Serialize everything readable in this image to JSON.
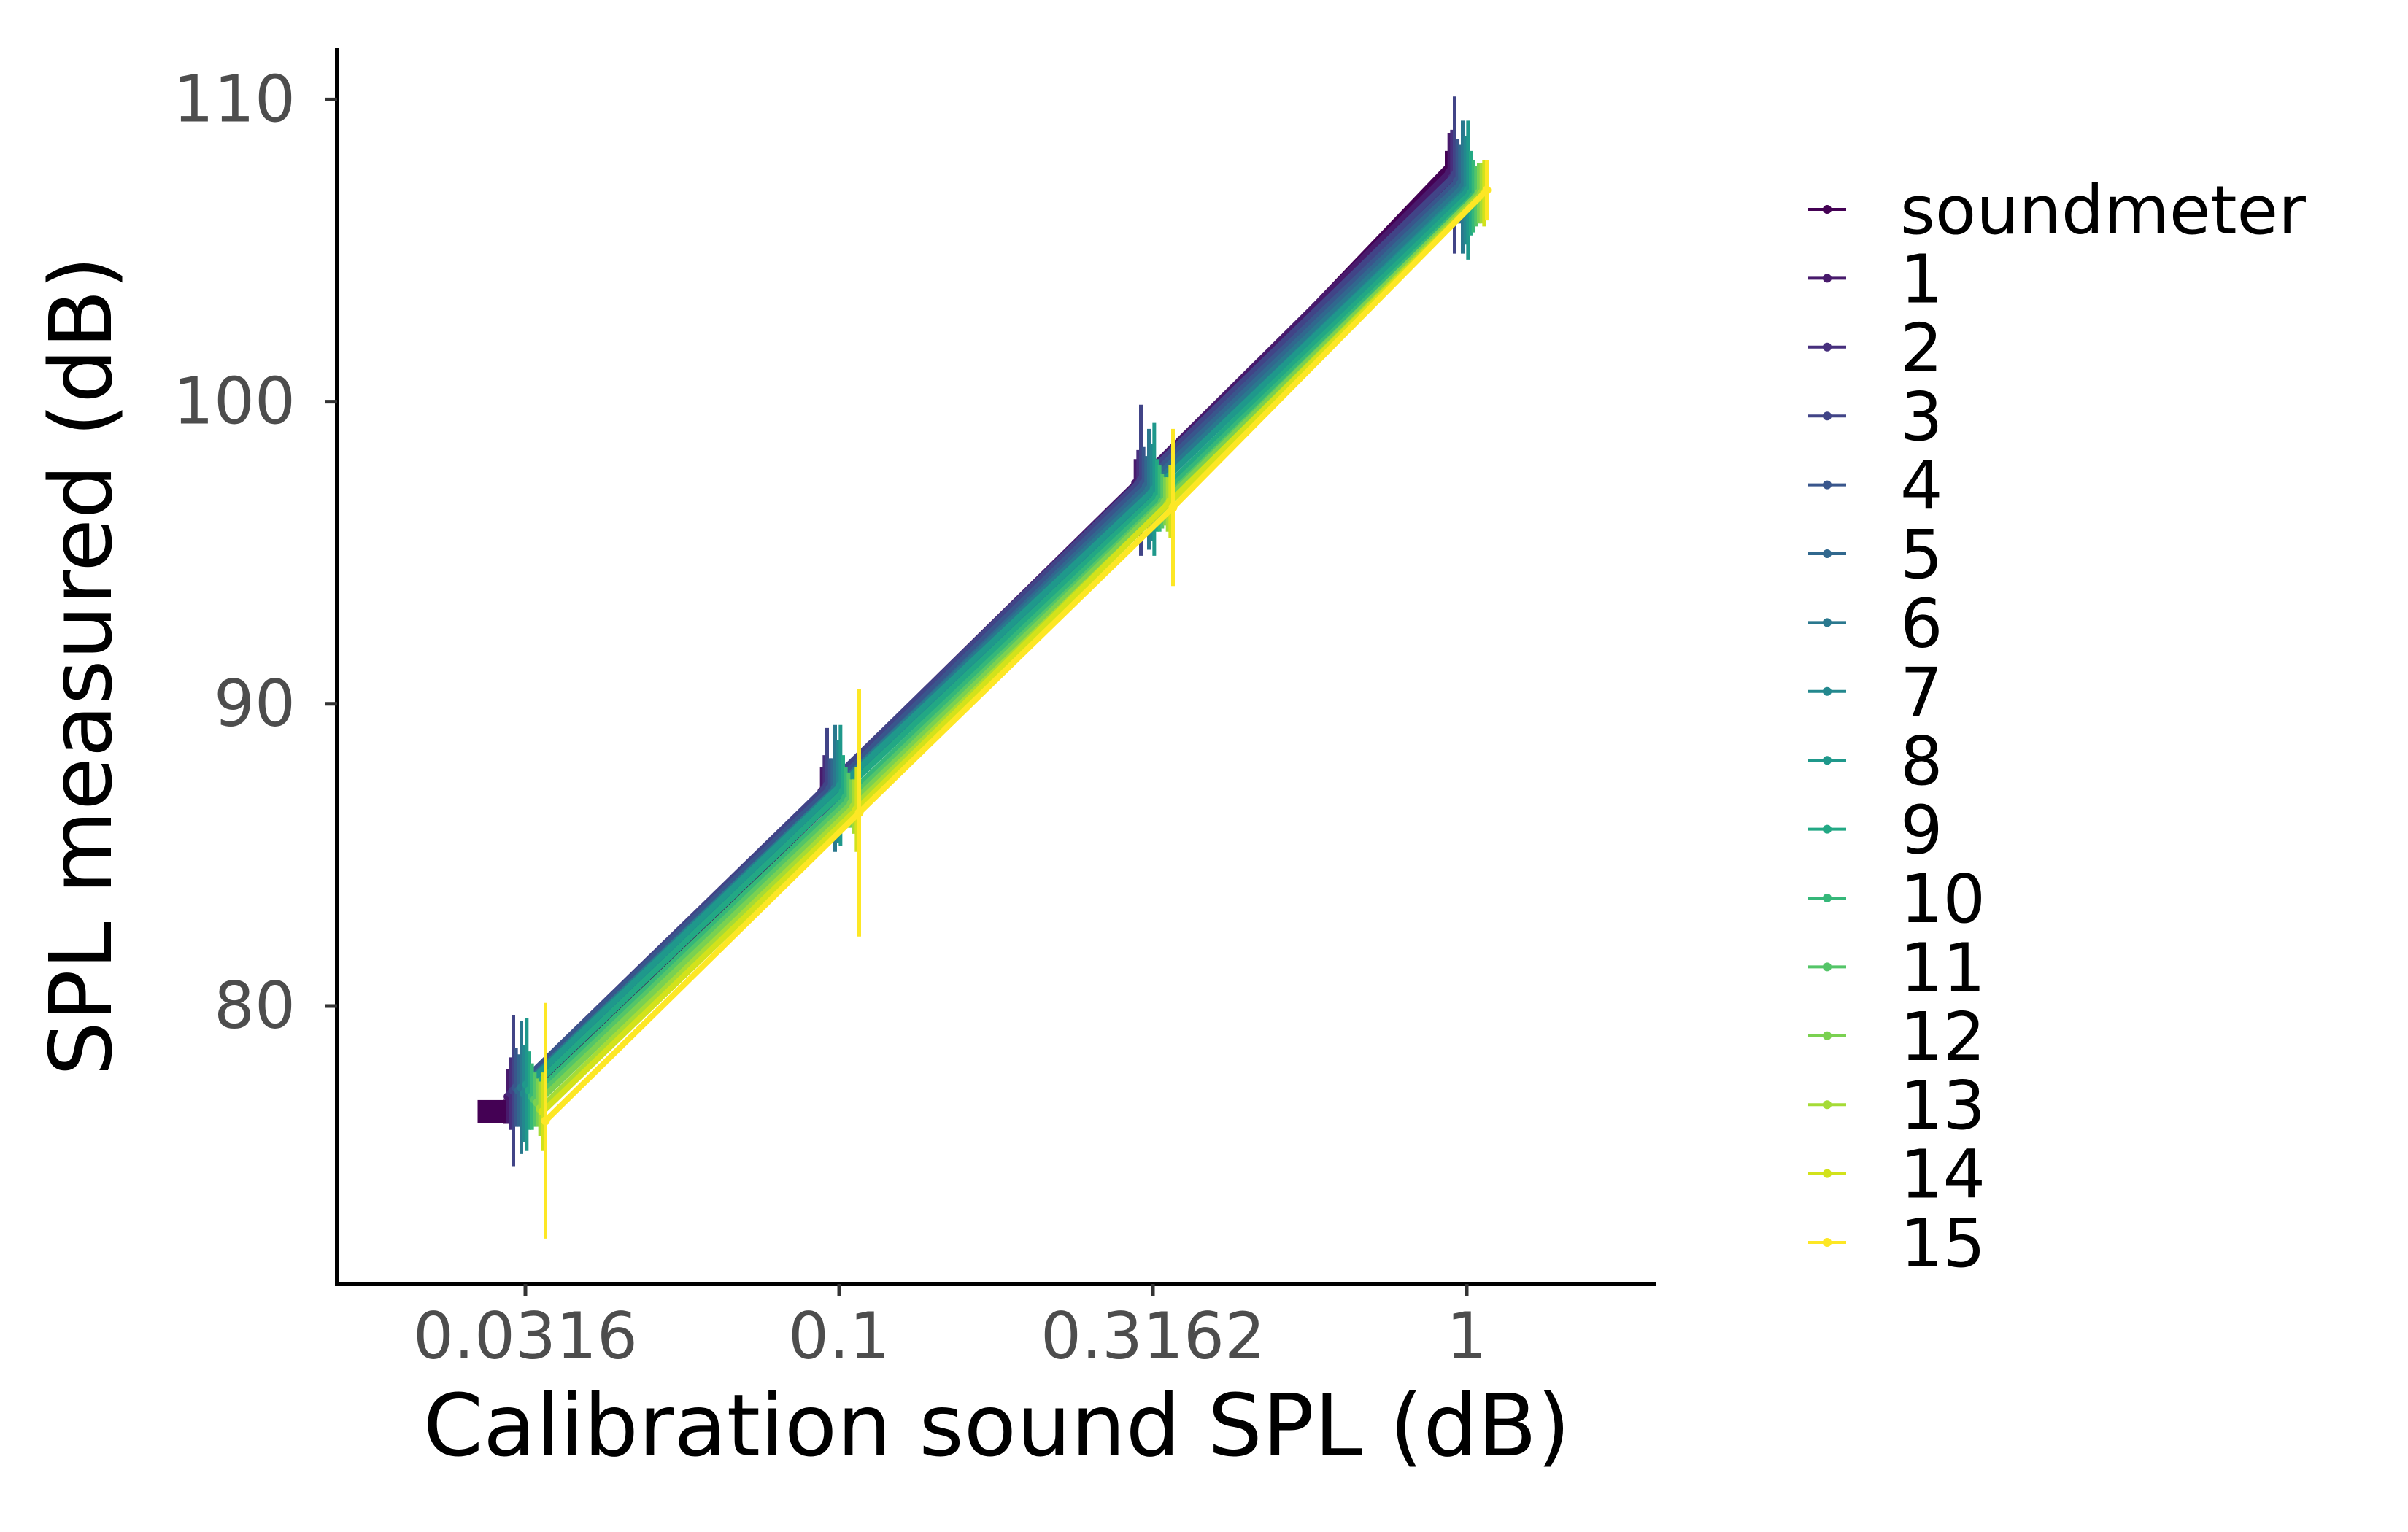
{
  "chart_data": {
    "type": "line",
    "title": "",
    "xlabel": "Calibration sound SPL (dB)",
    "ylabel": "SPL measured (dB)",
    "x": [
      "0.0316",
      "0.1",
      "0.3162",
      "1"
    ],
    "x_scale": "log",
    "ylim": [
      70.8,
      111.7
    ],
    "yticks": [
      80,
      90,
      100,
      110
    ],
    "grid": false,
    "legend_position": "right",
    "series": [
      {
        "name": "soundmeter",
        "color": "#440154",
        "values": [
          76.5,
          86.6,
          96.8,
          107.5
        ],
        "error": [
          0.4,
          0.3,
          0.3,
          0.8
        ]
      },
      {
        "name": "1",
        "color": "#481a6c",
        "values": [
          77.0,
          87.1,
          97.3,
          107.6
        ],
        "error": [
          0.9,
          0.8,
          0.8,
          1.3
        ]
      },
      {
        "name": "2",
        "color": "#472f7d",
        "values": [
          77.1,
          87.2,
          97.3,
          107.4
        ],
        "error": [
          1.2,
          1.1,
          1.1,
          1.6
        ]
      },
      {
        "name": "3",
        "color": "#414487",
        "values": [
          77.2,
          87.3,
          97.4,
          107.5
        ],
        "error": [
          2.5,
          1.9,
          2.5,
          2.6
        ]
      },
      {
        "name": "4",
        "color": "#39568c",
        "values": [
          77.3,
          87.2,
          97.3,
          107.3
        ],
        "error": [
          1.3,
          1.0,
          1.2,
          1.4
        ]
      },
      {
        "name": "5",
        "color": "#31688e",
        "values": [
          77.2,
          87.1,
          97.2,
          107.2
        ],
        "error": [
          1.2,
          1.1,
          1.0,
          1.3
        ]
      },
      {
        "name": "6",
        "color": "#2a788e",
        "values": [
          77.3,
          87.2,
          97.1,
          107.1
        ],
        "error": [
          2.2,
          2.1,
          2.0,
          2.2
        ]
      },
      {
        "name": "7",
        "color": "#23888e",
        "values": [
          77.1,
          87.1,
          97.0,
          107.0
        ],
        "error": [
          1.6,
          1.7,
          1.6,
          1.8
        ]
      },
      {
        "name": "8",
        "color": "#1f988b",
        "values": [
          77.4,
          87.3,
          97.1,
          107.0
        ],
        "error": [
          2.2,
          2.0,
          2.2,
          2.3
        ]
      },
      {
        "name": "9",
        "color": "#22a884",
        "values": [
          77.2,
          87.1,
          96.9,
          106.9
        ],
        "error": [
          1.3,
          1.2,
          1.2,
          1.4
        ]
      },
      {
        "name": "10",
        "color": "#35b779",
        "values": [
          77.0,
          86.9,
          96.8,
          106.8
        ],
        "error": [
          1.1,
          1.0,
          1.1,
          1.2
        ]
      },
      {
        "name": "11",
        "color": "#54c568",
        "values": [
          76.9,
          86.8,
          96.7,
          106.8
        ],
        "error": [
          0.9,
          0.9,
          0.9,
          1.0
        ]
      },
      {
        "name": "12",
        "color": "#7ad151",
        "values": [
          76.8,
          86.7,
          96.7,
          106.9
        ],
        "error": [
          0.8,
          0.8,
          0.8,
          1.0
        ]
      },
      {
        "name": "13",
        "color": "#a5db36",
        "values": [
          76.6,
          86.6,
          96.6,
          106.9
        ],
        "error": [
          0.9,
          0.9,
          0.9,
          1.0
        ]
      },
      {
        "name": "14",
        "color": "#d2e21b",
        "values": [
          76.5,
          86.5,
          96.7,
          106.9
        ],
        "error": [
          1.3,
          1.4,
          1.2,
          1.1
        ]
      },
      {
        "name": "15",
        "color": "#fde725",
        "values": [
          76.2,
          86.4,
          96.5,
          107.0
        ],
        "error": [
          3.9,
          4.1,
          2.6,
          1.0
        ]
      }
    ]
  }
}
